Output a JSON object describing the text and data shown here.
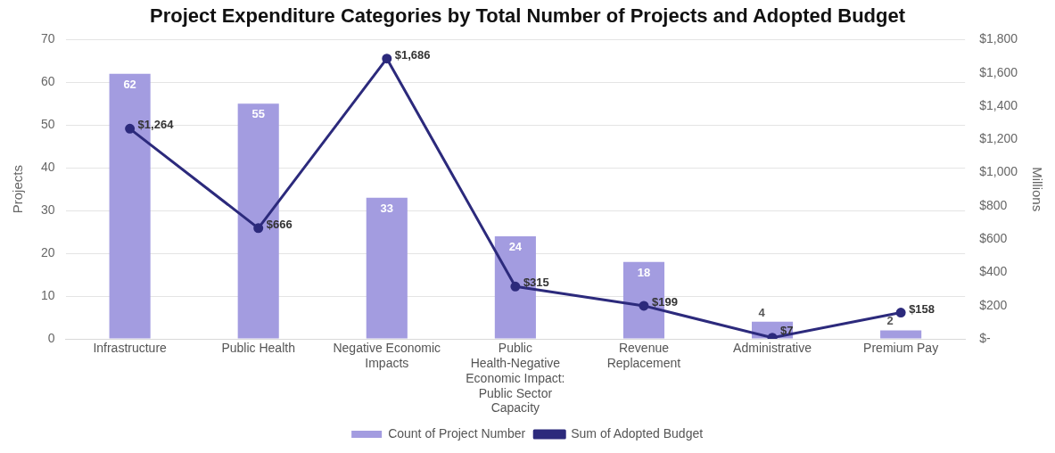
{
  "chart_data": {
    "type": "bar",
    "title": "Project Expenditure Categories by Total Number of Projects and Adopted Budget",
    "categories": [
      "Infrastructure",
      "Public Health",
      "Negative Economic Impacts",
      "Public Health-Negative Economic Impact: Public Sector Capacity",
      "Revenue Replacement",
      "Administrative",
      "Premium Pay"
    ],
    "series": [
      {
        "name": "Count of Project Number",
        "color": "#a39ce0",
        "values": [
          62,
          55,
          33,
          24,
          18,
          4,
          2
        ],
        "value_labels": [
          "62",
          "55",
          "33",
          "24",
          "18",
          "4",
          "2"
        ]
      },
      {
        "name": "Sum of Adopted Budget",
        "type": "line",
        "axis": "y2",
        "color": "#2c2a7c",
        "values": [
          1264,
          666,
          1686,
          315,
          199,
          7,
          158
        ],
        "value_labels": [
          "$1,264",
          "$666",
          "$1,686",
          "$315",
          "$199",
          "$7",
          "$158"
        ]
      }
    ],
    "ylabel": "Projects",
    "y2label": "Millions",
    "ylim": [
      0,
      70
    ],
    "yticks": [
      0,
      10,
      20,
      30,
      40,
      50,
      60,
      70
    ],
    "y2lim": [
      0,
      1800
    ],
    "y2ticks": [
      {
        "value": 0,
        "label": "$-"
      },
      {
        "value": 200,
        "label": "$200"
      },
      {
        "value": 400,
        "label": "$400"
      },
      {
        "value": 600,
        "label": "$600"
      },
      {
        "value": 800,
        "label": "$800"
      },
      {
        "value": 1000,
        "label": "$1,000"
      },
      {
        "value": 1200,
        "label": "$1,200"
      },
      {
        "value": 1400,
        "label": "$1,400"
      },
      {
        "value": 1600,
        "label": "$1,600"
      },
      {
        "value": 1800,
        "label": "$1,800"
      }
    ],
    "grid": "y",
    "legend": "bottom",
    "marker": "circle",
    "line_style": "solid"
  }
}
